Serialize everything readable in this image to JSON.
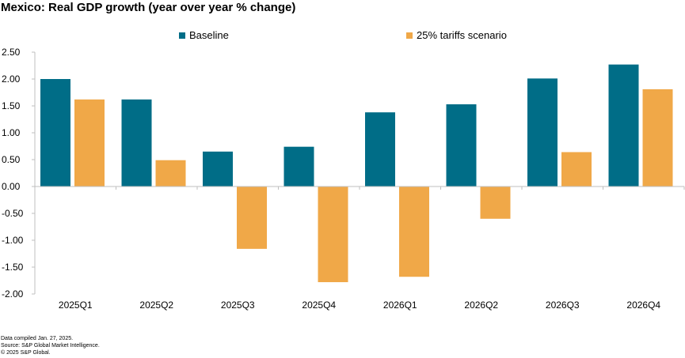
{
  "chart_data": {
    "type": "bar",
    "title": "Mexico: Real GDP growth (year over year % change)",
    "categories": [
      "2025Q1",
      "2025Q2",
      "2025Q3",
      "2025Q4",
      "2026Q1",
      "2026Q2",
      "2026Q3",
      "2026Q4"
    ],
    "series": [
      {
        "name": "Baseline",
        "color": "#006d87",
        "values": [
          2.0,
          1.62,
          0.65,
          0.74,
          1.38,
          1.53,
          2.01,
          2.27
        ]
      },
      {
        "name": "25% tariffs scenario",
        "color": "#f0a848",
        "values": [
          1.62,
          0.49,
          -1.16,
          -1.78,
          -1.68,
          -0.6,
          0.64,
          1.81
        ]
      }
    ],
    "ylim": [
      -2.0,
      2.5
    ],
    "yticks": [
      "2.50",
      "2.00",
      "1.50",
      "1.00",
      "0.50",
      "0.00",
      "-0.50",
      "-1.00",
      "-1.50",
      "-2.00"
    ],
    "ytick_values": [
      2.5,
      2.0,
      1.5,
      1.0,
      0.5,
      0.0,
      -0.5,
      -1.0,
      -1.5,
      -2.0
    ],
    "grid": false,
    "legend_position": "top"
  },
  "footnotes": {
    "line1": "Data compiled Jan. 27, 2025.",
    "line2": "Source: S&P Global Market Intelligence.",
    "line3": "© 2025 S&P Global."
  }
}
